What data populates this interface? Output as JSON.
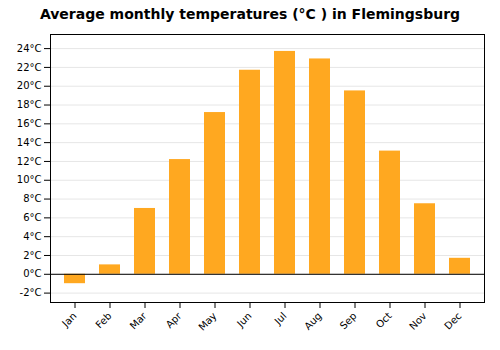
{
  "chart_data": {
    "type": "bar",
    "title": "Average monthly temperatures (°C ) in Flemingsburg",
    "categories": [
      "Jan",
      "Feb",
      "Mar",
      "Apr",
      "May",
      "Jun",
      "Jul",
      "Aug",
      "Sep",
      "Oct",
      "Nov",
      "Dec"
    ],
    "values": [
      -1.0,
      1.0,
      7.0,
      12.2,
      17.2,
      21.7,
      23.7,
      22.9,
      19.5,
      13.1,
      7.5,
      1.7
    ],
    "color": "#FFA820",
    "ylim": [
      -3,
      25.5
    ],
    "yticks": [
      {
        "value": -2,
        "label": "-2°C"
      },
      {
        "value": 0,
        "label": "0°C"
      },
      {
        "value": 2,
        "label": "2°C"
      },
      {
        "value": 4,
        "label": "4°C"
      },
      {
        "value": 6,
        "label": "6°C"
      },
      {
        "value": 8,
        "label": "8°C"
      },
      {
        "value": 10,
        "label": "10°C"
      },
      {
        "value": 12,
        "label": "12°C"
      },
      {
        "value": 14,
        "label": "14°C"
      },
      {
        "value": 16,
        "label": "16°C"
      },
      {
        "value": 18,
        "label": "18°C"
      },
      {
        "value": 20,
        "label": "20°C"
      },
      {
        "value": 22,
        "label": "22°C"
      },
      {
        "value": 24,
        "label": "24°C"
      }
    ],
    "grid": true
  }
}
